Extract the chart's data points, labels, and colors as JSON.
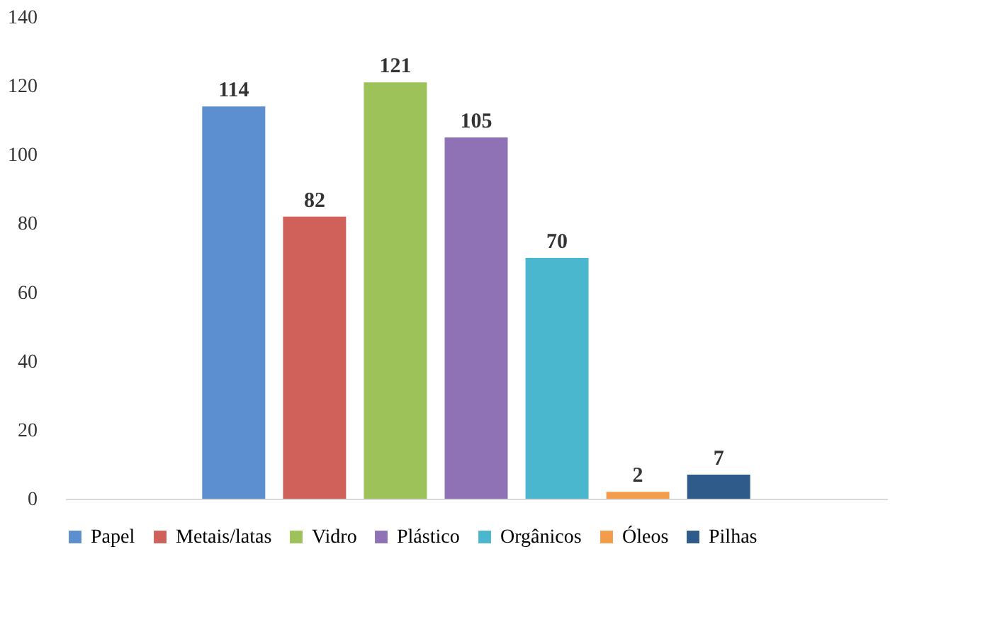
{
  "chart_data": {
    "type": "bar",
    "categories": [
      null
    ],
    "series": [
      {
        "name": "Papel",
        "color": "#5b8fcf",
        "values": [
          114
        ]
      },
      {
        "name": "Metais/latas",
        "color": "#d0605a",
        "values": [
          82
        ]
      },
      {
        "name": "Vidro",
        "color": "#9dc25a",
        "values": [
          121
        ]
      },
      {
        "name": "Plástico",
        "color": "#8e72b5",
        "values": [
          105
        ]
      },
      {
        "name": "Orgânicos",
        "color": "#4bb7cf",
        "values": [
          70
        ]
      },
      {
        "name": "Óleos",
        "color": "#f39c4a",
        "values": [
          2
        ]
      },
      {
        "name": "Pilhas",
        "color": "#2e5b8a",
        "values": [
          7
        ]
      }
    ],
    "ylim": [
      0,
      140
    ],
    "yticks": [
      0,
      20,
      40,
      60,
      80,
      100,
      120,
      140
    ],
    "data_labels": true,
    "legend": "bottom",
    "grid": false
  }
}
